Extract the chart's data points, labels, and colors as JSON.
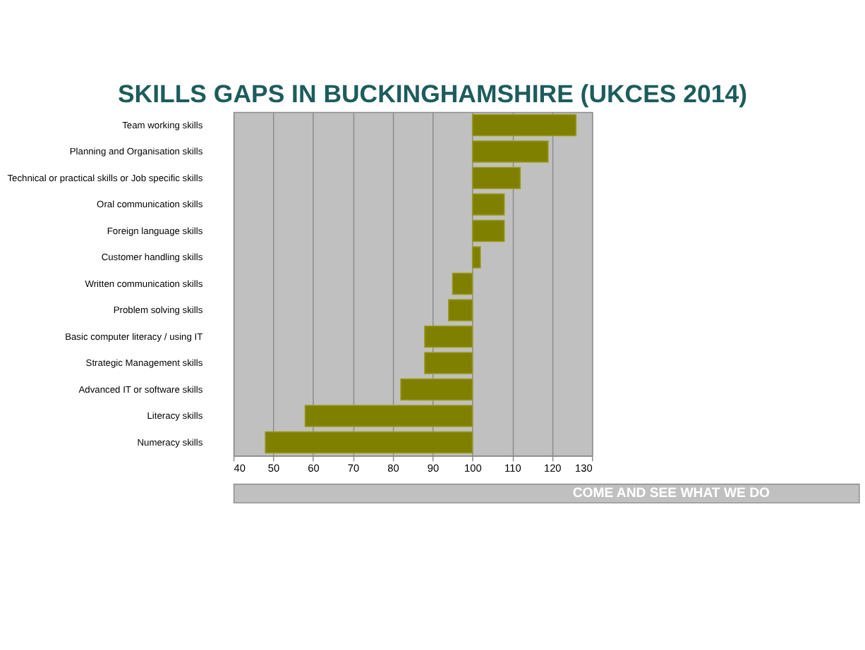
{
  "chart_data": {
    "type": "bar",
    "orientation": "horizontal",
    "title": "SKILLS GAPS IN BUCKINGHAMSHIRE (UKCES 2014)",
    "categories": [
      "Team working skills",
      "Planning and Organisation skills",
      "Technical or practical skills or Job specific skills",
      "Oral communication skills",
      "Foreign language skills",
      "Customer handling skills",
      "Written communication skills",
      "Problem solving skills",
      "Basic computer literacy / using IT",
      "Strategic Management skills",
      "Advanced IT or software skills",
      "Literacy skills",
      "Numeracy skills"
    ],
    "base": [
      100,
      100,
      100,
      100,
      100,
      100,
      100,
      100,
      100,
      100,
      100,
      100,
      100
    ],
    "values": [
      26,
      19,
      12,
      8,
      8,
      2,
      -5,
      -6,
      -12,
      -12,
      -18,
      -42,
      -52
    ],
    "color": "#808000",
    "xlim": [
      40,
      130
    ],
    "xticks": [
      40,
      50,
      60,
      70,
      80,
      90,
      100,
      110,
      120,
      130
    ],
    "grid": "x",
    "annotations": [
      "COME AND SEE WHAT WE DO"
    ]
  }
}
